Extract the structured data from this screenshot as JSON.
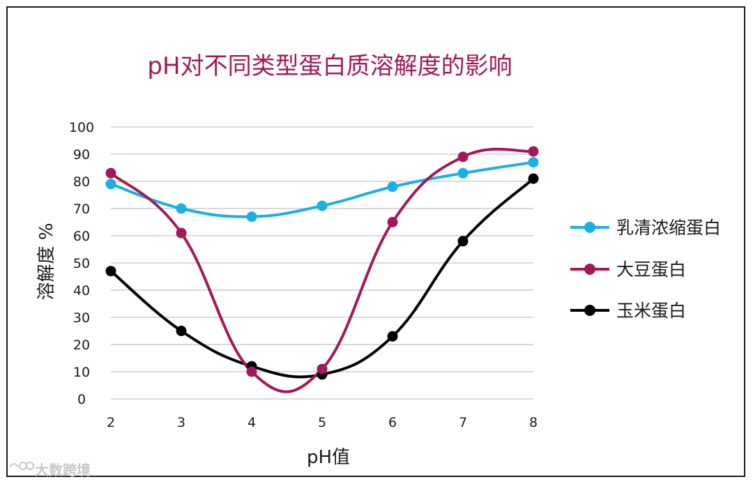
{
  "chart_data": {
    "type": "line",
    "title": "pH对不同类型蛋白质溶解度的影响",
    "xlabel": "pH值",
    "ylabel": "溶解度 %",
    "x": [
      2,
      3,
      4,
      5,
      6,
      7,
      8
    ],
    "ylim": [
      0,
      100
    ],
    "yticks": [
      0,
      10,
      20,
      30,
      40,
      50,
      60,
      70,
      80,
      90,
      100
    ],
    "grid": true,
    "legend_position": "right",
    "series": [
      {
        "name": "乳清浓缩蛋白",
        "color": "#1ab0e6",
        "values": [
          79,
          70,
          67,
          71,
          78,
          83,
          87
        ]
      },
      {
        "name": "大豆蛋白",
        "color": "#a3185a",
        "values": [
          83,
          61,
          10,
          11,
          65,
          89,
          91
        ]
      },
      {
        "name": "玉米蛋白",
        "color": "#000000",
        "values": [
          47,
          25,
          12,
          9,
          23,
          58,
          81
        ]
      }
    ]
  },
  "watermark": "大数跨境"
}
